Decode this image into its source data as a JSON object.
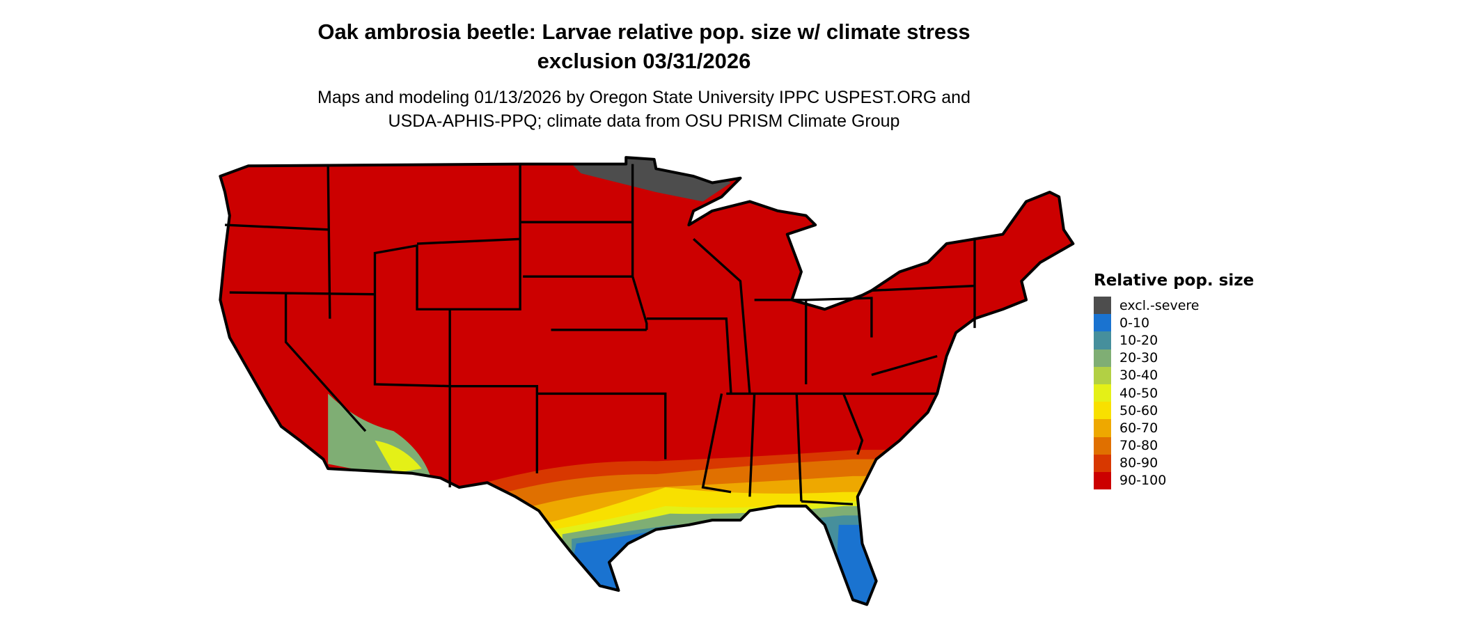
{
  "title_line1": "Oak ambrosia beetle: Larvae relative pop. size w/ climate stress",
  "title_line2": "exclusion 03/31/2026",
  "subtitle_line1": "Maps and modeling 01/13/2026 by Oregon State University IPPC USPEST.ORG and",
  "subtitle_line2": "USDA-APHIS-PPQ; climate data from OSU PRISM Climate Group",
  "chart_data": {
    "type": "map",
    "region": "Contiguous United States",
    "legend": {
      "title": "Relative pop. size",
      "placement": "right",
      "items": [
        {
          "label": "excl.-severe",
          "color": "#4d4d4d"
        },
        {
          "label": "0-10",
          "color": "#1a73d0"
        },
        {
          "label": "10-20",
          "color": "#468f9c"
        },
        {
          "label": "20-30",
          "color": "#7fae74"
        },
        {
          "label": "30-40",
          "color": "#b2d044"
        },
        {
          "label": "40-50",
          "color": "#e4f017"
        },
        {
          "label": "50-60",
          "color": "#f8e000"
        },
        {
          "label": "60-70",
          "color": "#eea800"
        },
        {
          "label": "70-80",
          "color": "#e07000"
        },
        {
          "label": "80-90",
          "color": "#d83800"
        },
        {
          "label": "90-100",
          "color": "#cc0000"
        }
      ]
    }
  }
}
